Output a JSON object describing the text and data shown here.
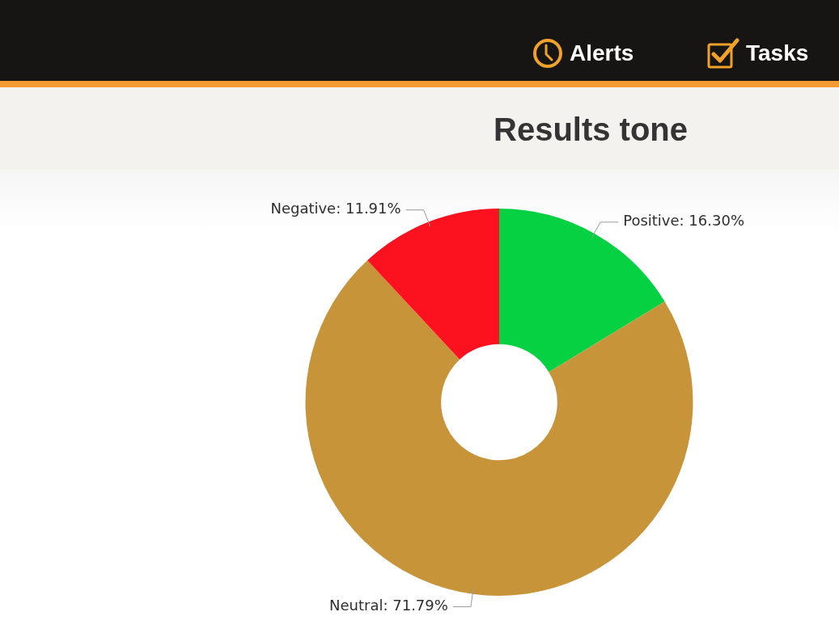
{
  "chart_data": {
    "type": "donut",
    "title": "Results tone",
    "categories": [
      "Positive",
      "Neutral",
      "Negative"
    ],
    "values": [
      16.3,
      71.79,
      11.91
    ],
    "colors": [
      "#06d142",
      "#c8943a",
      "#fc111f"
    ],
    "value_labels": [
      "16.30%",
      "71.79%",
      "11.91%"
    ],
    "legend": false,
    "annotations": [
      "Alerts",
      "Tasks"
    ]
  }
}
